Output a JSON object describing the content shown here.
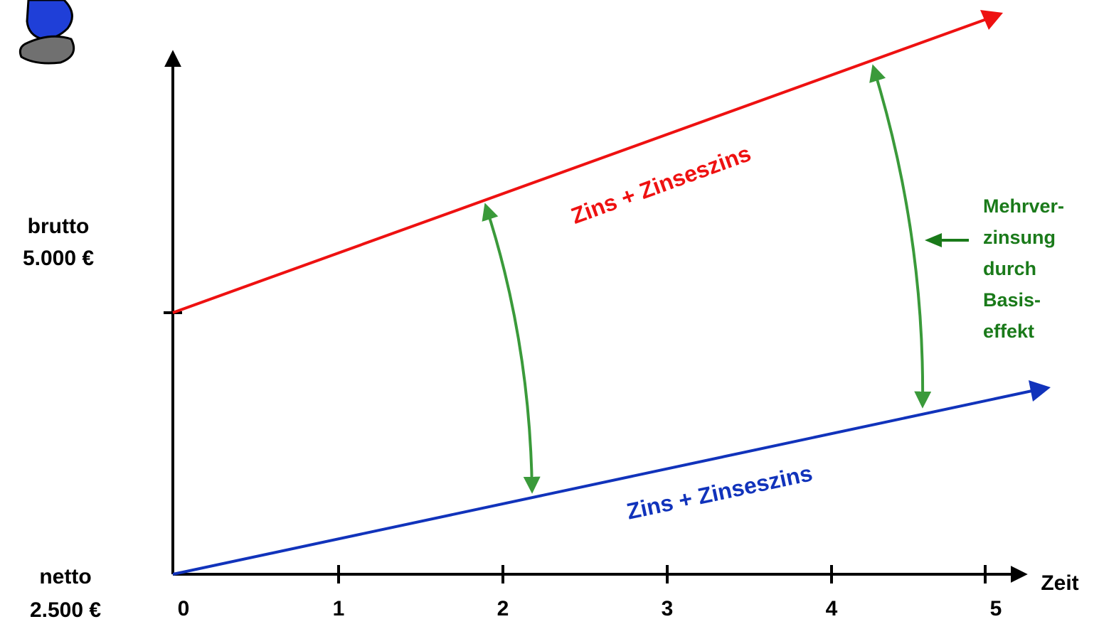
{
  "y_labels": {
    "brutto": [
      "brutto",
      "5.000 €"
    ],
    "netto": [
      "netto",
      "2.500 €"
    ]
  },
  "x_ticks": [
    "0",
    "1",
    "2",
    "3",
    "4",
    "5"
  ],
  "x_axis_label": "Zeit",
  "lines": [
    {
      "label": "Zins + Zinseszins",
      "color": "#ee1111"
    },
    {
      "label": "Zins + Zinseszins",
      "color": "#1133bb"
    }
  ],
  "annotation": {
    "color": "#1a7a1a",
    "lines": [
      "Mehrver-",
      "zinsung",
      "durch",
      "Basis-",
      "effekt"
    ]
  }
}
